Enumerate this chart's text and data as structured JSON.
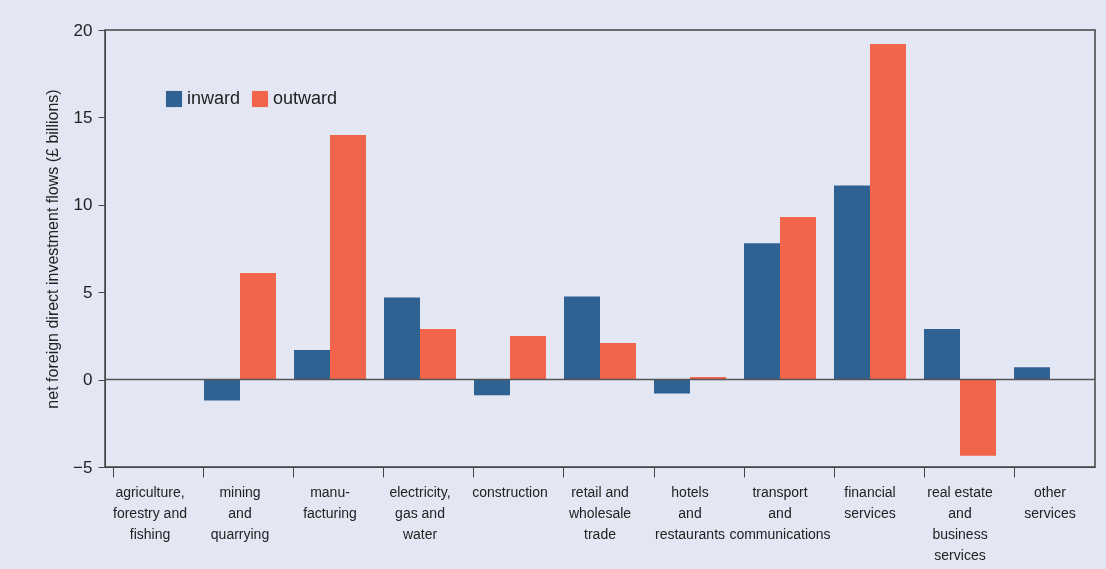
{
  "chart_data": {
    "type": "bar",
    "ylabel": "net foreign direct investment flows (£ billions)",
    "categories": [
      "agriculture,\nforestry and\nfishing",
      "mining\nand\nquarrying",
      "manu-\nfacturing",
      "electricity,\ngas and\nwater",
      "construction",
      "retail and\nwholesale\ntrade",
      "hotels\nand\nrestaurants",
      "transport\nand\ncommunications",
      "financial\nservices",
      "real estate\nand\nbusiness\nservices",
      "other\nservices"
    ],
    "series": [
      {
        "name": "inward",
        "color": "#2f6193",
        "values": [
          null,
          -1.2,
          1.7,
          4.7,
          -0.9,
          4.75,
          -0.8,
          7.8,
          11.1,
          2.9,
          0.7
        ]
      },
      {
        "name": "outward",
        "color": "#f2654a",
        "values": [
          null,
          6.1,
          14.0,
          2.9,
          2.5,
          2.1,
          0.15,
          9.3,
          19.2,
          -4.35,
          null
        ]
      }
    ],
    "ylim": [
      -5,
      20
    ],
    "yticks": [
      {
        "value": -5,
        "label": "−5"
      },
      0,
      5,
      10,
      15,
      20
    ],
    "ref_lines": [
      {
        "axis": "y",
        "value": 0,
        "color": "#555555"
      }
    ],
    "grid": false,
    "legend": "top left"
  }
}
